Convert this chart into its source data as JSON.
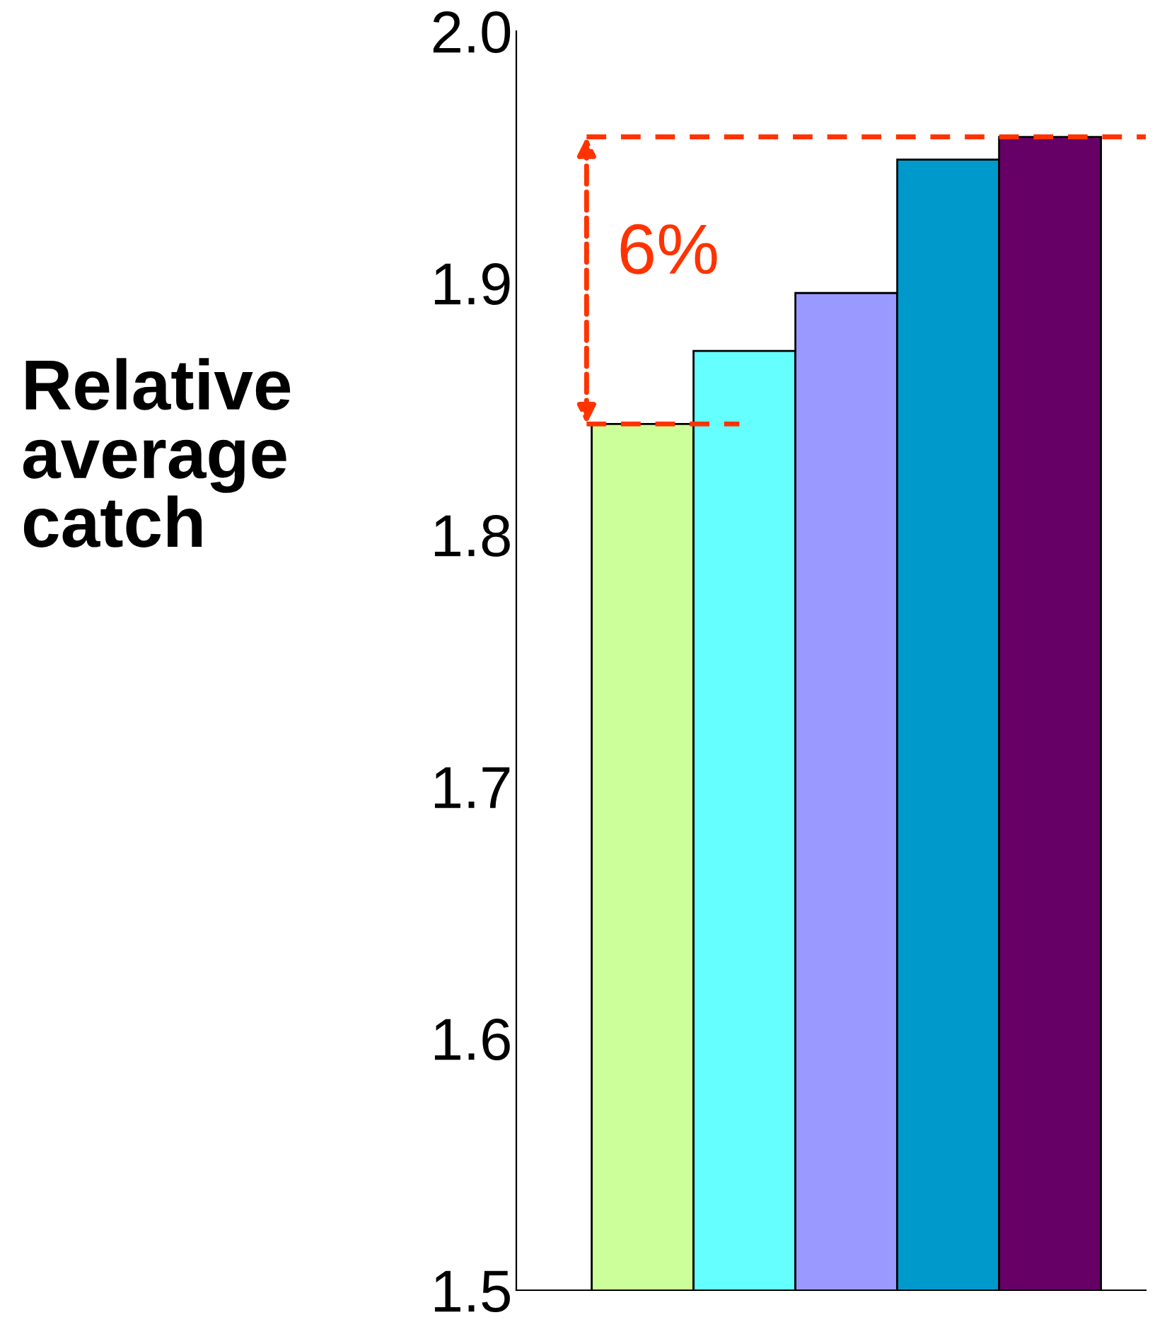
{
  "chart_data": {
    "type": "bar",
    "ylabel": "Relative\naverage\ncatch",
    "categories": [
      null,
      null,
      null,
      null,
      null
    ],
    "values": [
      1.844,
      1.873,
      1.896,
      1.949,
      1.958
    ],
    "colors": [
      "#ccff99",
      "#66ffff",
      "#9999ff",
      "#0099cc",
      "#660066"
    ],
    "ylim": [
      1.5,
      2.0
    ],
    "yticks": [
      1.5,
      1.6,
      1.7,
      1.8,
      1.9,
      {
        "value": 2.0,
        "label": "2.0"
      }
    ],
    "tick_labels": "y",
    "grid": false,
    "ref_lines": [
      {
        "axis": "y",
        "value": 1.958,
        "color": "#ff3300",
        "line_style": "dashed"
      },
      {
        "axis": "y",
        "value": 1.844,
        "color": "#ff3300",
        "line_style": "dashed"
      }
    ],
    "annotations": [
      "6%"
    ]
  }
}
